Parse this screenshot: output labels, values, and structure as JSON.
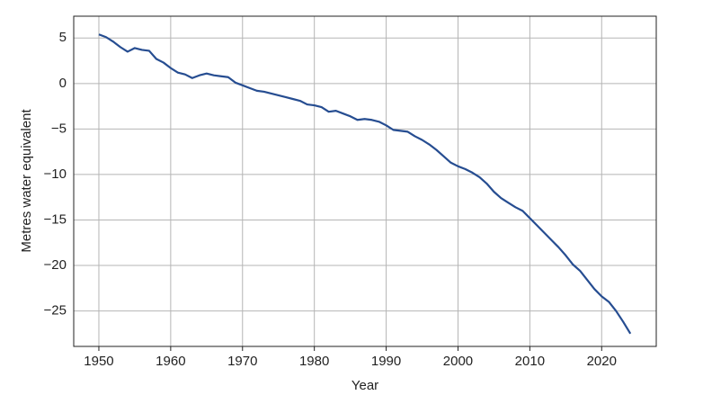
{
  "chart_data": {
    "type": "line",
    "x_label": "Year",
    "y_label": "Metres water equivalent",
    "x": [
      1950,
      1951,
      1952,
      1953,
      1954,
      1955,
      1956,
      1957,
      1958,
      1959,
      1960,
      1961,
      1962,
      1963,
      1964,
      1965,
      1966,
      1967,
      1968,
      1969,
      1970,
      1971,
      1972,
      1973,
      1974,
      1975,
      1976,
      1977,
      1978,
      1979,
      1980,
      1981,
      1982,
      1983,
      1984,
      1985,
      1986,
      1987,
      1988,
      1989,
      1990,
      1991,
      1992,
      1993,
      1994,
      1995,
      1996,
      1997,
      1998,
      1999,
      2000,
      2001,
      2002,
      2003,
      2004,
      2005,
      2006,
      2007,
      2008,
      2009,
      2010,
      2011,
      2012,
      2013,
      2014,
      2015,
      2016,
      2017,
      2018,
      2019,
      2020,
      2021,
      2022,
      2023,
      2024
    ],
    "values": [
      5.4,
      5.1,
      4.6,
      4.0,
      3.5,
      3.9,
      3.7,
      3.6,
      2.7,
      2.3,
      1.7,
      1.2,
      1.0,
      0.6,
      0.9,
      1.1,
      0.9,
      0.8,
      0.7,
      0.1,
      -0.2,
      -0.5,
      -0.8,
      -0.9,
      -1.1,
      -1.3,
      -1.5,
      -1.7,
      -1.9,
      -2.3,
      -2.4,
      -2.6,
      -3.1,
      -3.0,
      -3.3,
      -3.6,
      -4.0,
      -3.9,
      -4.0,
      -4.2,
      -4.6,
      -5.1,
      -5.2,
      -5.3,
      -5.8,
      -6.2,
      -6.7,
      -7.3,
      -8.0,
      -8.7,
      -9.1,
      -9.4,
      -9.8,
      -10.3,
      -11.0,
      -11.9,
      -12.6,
      -13.1,
      -13.6,
      -14.0,
      -14.8,
      -15.6,
      -16.4,
      -17.2,
      -18.0,
      -18.9,
      -19.9,
      -20.6,
      -21.6,
      -22.6,
      -23.4,
      -24.0,
      -25.0,
      -26.2,
      -27.5
    ],
    "color": "#264d91",
    "xlim": [
      1946.5,
      2027.6
    ],
    "ylim": [
      -28.9,
      7.4
    ],
    "xticks": [
      1950,
      1960,
      1970,
      1980,
      1990,
      2000,
      2010,
      2020
    ],
    "yticks": [
      5,
      0,
      {
        "value": -5,
        "label": "−5"
      },
      {
        "value": -10,
        "label": "−10"
      },
      {
        "value": -15,
        "label": "−15"
      },
      {
        "value": -20,
        "label": "−20"
      },
      {
        "value": -25,
        "label": "−25"
      }
    ],
    "grid": true
  }
}
